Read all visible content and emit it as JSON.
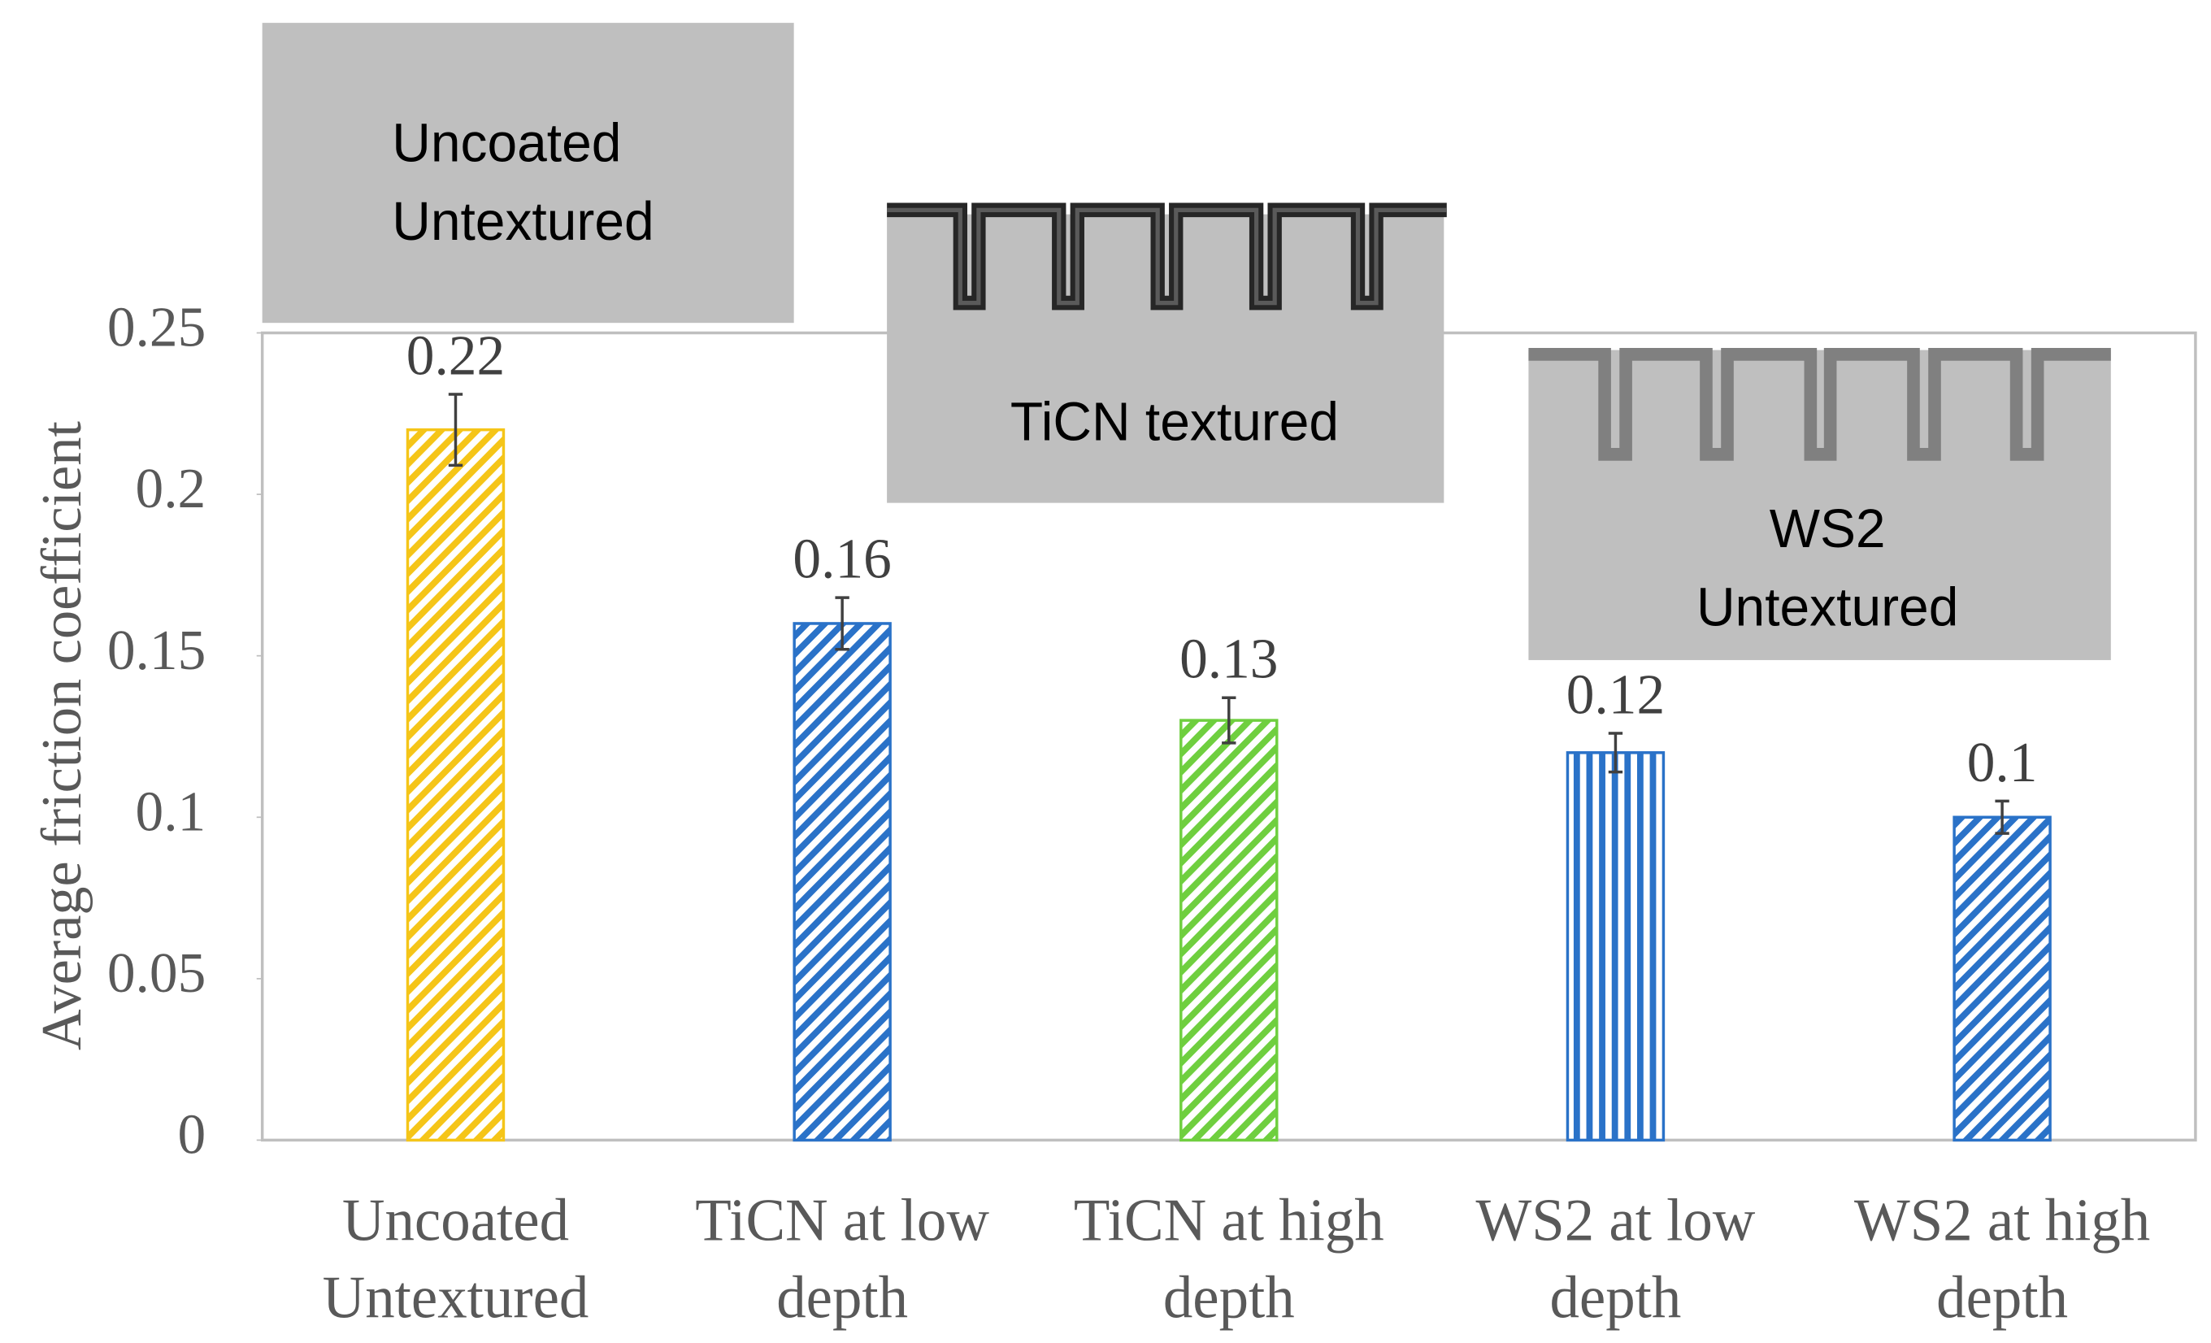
{
  "chart_data": {
    "type": "bar",
    "y_label": "Average friction coefficient",
    "categories": [
      "Uncoated\nUntextured",
      "TiCN at low\ndepth",
      "TiCN at high\ndepth",
      "WS2 at low\ndepth",
      "WS2 at high\ndepth"
    ],
    "values": [
      0.22,
      0.16,
      0.13,
      0.12,
      0.1
    ],
    "errors": [
      0.011,
      0.008,
      0.007,
      0.006,
      0.005
    ],
    "colors": [
      "#f5c518",
      "#2a72c8",
      "#6fcf3f",
      "#2a72c8",
      "#2a72c8"
    ],
    "patterns": [
      "diagonal",
      "diagonal",
      "diagonal",
      "vertical",
      "diagonal"
    ],
    "ylim": [
      0,
      0.25
    ],
    "yticks": [
      0,
      0.05,
      0.1,
      0.15,
      0.2,
      0.25
    ],
    "annotations": [
      "Uncoated\nUntextured",
      "TiCN textured",
      "WS2\nUntextured"
    ]
  }
}
